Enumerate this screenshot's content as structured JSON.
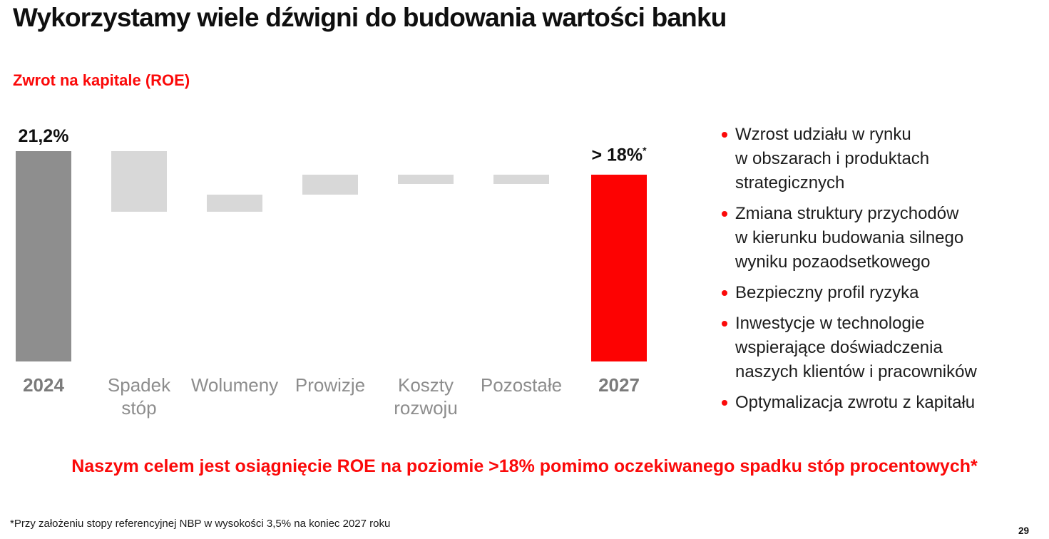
{
  "header": {
    "title": "Wykorzystamy wiele dźwigni do budowania wartości banku",
    "chart_title": "Zwrot na kapitale (ROE)"
  },
  "colors": {
    "dark_gray": "#8e8e8e",
    "light_gray": "#d8d8d8",
    "red": "#fd0202",
    "label_gray": "#8d8d8d",
    "accent_red_text": "#fb0a0a"
  },
  "chart_data": {
    "type": "waterfall",
    "title": "Zwrot na kapitale (ROE)",
    "unit": "%",
    "ylim": [
      0,
      22
    ],
    "grid": false,
    "legend": false,
    "categories": [
      "2024",
      "Spadek stóp",
      "Wolumeny",
      "Prowizje",
      "Koszty rozwoju",
      "Pozostałe",
      "2027"
    ],
    "bars": [
      {
        "tick": "2024",
        "emphasis": true,
        "kind": "total",
        "start": 0,
        "end": 21.2,
        "color": "dark_gray",
        "value_label": "21,2%"
      },
      {
        "tick": "Spadek\nstóp",
        "emphasis": false,
        "kind": "delta",
        "start": 21.2,
        "end": 15.1,
        "color": "light_gray"
      },
      {
        "tick": "Wolumeny",
        "emphasis": false,
        "kind": "delta",
        "start": 15.1,
        "end": 16.8,
        "color": "light_gray"
      },
      {
        "tick": "Prowizje",
        "emphasis": false,
        "kind": "delta",
        "start": 16.8,
        "end": 18.8,
        "color": "light_gray"
      },
      {
        "tick": "Koszty\nrozwoju",
        "emphasis": false,
        "kind": "delta",
        "start": 18.8,
        "end": 17.9,
        "color": "light_gray"
      },
      {
        "tick": "Pozostałe",
        "emphasis": false,
        "kind": "delta",
        "start": 17.9,
        "end": 18.8,
        "color": "light_gray"
      },
      {
        "tick": "2027",
        "emphasis": true,
        "kind": "total",
        "start": 0,
        "end": 18.8,
        "color": "red",
        "value_label": "> 18%",
        "value_label_sup": "*"
      }
    ]
  },
  "levers": {
    "items": [
      {
        "text": "Wzrost udziału w rynku\nw obszarach i produktach\nstrategicznych"
      },
      {
        "text": "Zmiana struktury przychodów\nw kierunku budowania silnego\nwyniku pozaodsetkowego"
      },
      {
        "text": "Bezpieczny profil ryzyka"
      },
      {
        "text": "Inwestycje w technologie\nwspierające doświadczenia\nnaszych klientów i pracowników"
      },
      {
        "text": "Optymalizacja zwrotu z kapitału"
      }
    ]
  },
  "goal_statement": "Naszym celem jest osiągnięcie ROE na poziomie >18% pomimo oczekiwanego spadku stóp procentowych*",
  "footnote": "*Przy założeniu stopy referencyjnej NBP w wysokości 3,5% na koniec 2027 roku",
  "page_number": "29"
}
